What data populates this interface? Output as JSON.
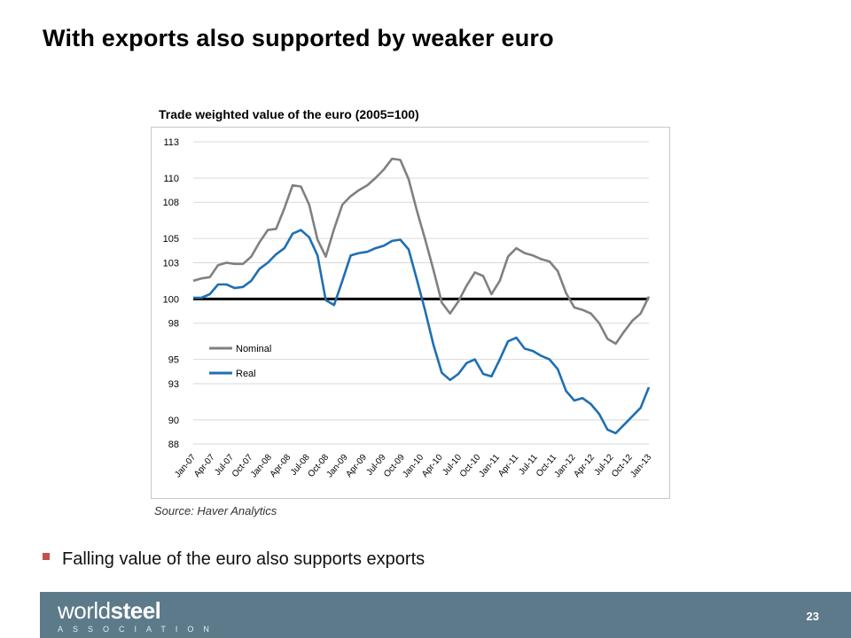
{
  "slide": {
    "title": "With exports also supported by weaker euro",
    "source": "Source: Haver Analytics",
    "bullet": "Falling value of the euro also supports exports",
    "page_number": "23"
  },
  "footer": {
    "logo_light": "world",
    "logo_bold": "steel",
    "logo_sub": "ASSOCIATION",
    "background": "#5c7a8a"
  },
  "chart_data": {
    "type": "line",
    "title": "Trade weighted value of the euro (2005=100)",
    "xlabel": "",
    "ylabel": "",
    "x_tick_labels": [
      "Jan-07",
      "Apr-07",
      "Jul-07",
      "Oct-07",
      "Jan-08",
      "Apr-08",
      "Jul-08",
      "Oct-08",
      "Jan-09",
      "Apr-09",
      "Jul-09",
      "Oct-09",
      "Jan-10",
      "Apr-10",
      "Jul-10",
      "Oct-10",
      "Jan-11",
      "Apr-11",
      "Jul-11",
      "Oct-11",
      "Jan-12",
      "Apr-12",
      "Jul-12",
      "Oct-12",
      "Jan-13"
    ],
    "y_ticks": [
      88,
      90,
      93,
      95,
      98,
      100,
      103,
      105,
      108,
      110,
      113
    ],
    "y_tick_labels": [
      "88",
      "90",
      "93",
      "95",
      "98",
      "100",
      "103",
      "105",
      "108",
      "110",
      "113"
    ],
    "ylim": [
      87.5,
      113
    ],
    "grid": true,
    "legend_position": "lower-left",
    "reference_line": 100,
    "series": [
      {
        "name": "Nominal",
        "color": "#808080",
        "values": [
          101.5,
          101.7,
          101.8,
          102.8,
          103.0,
          102.9,
          102.9,
          103.5,
          104.7,
          105.7,
          105.8,
          107.5,
          109.4,
          109.3,
          107.8,
          104.9,
          103.5,
          105.8,
          107.8,
          108.5,
          109.0,
          109.4,
          110.0,
          110.7,
          111.6,
          111.5,
          109.9,
          107.3,
          104.9,
          102.4,
          99.7,
          98.8,
          99.8,
          101.1,
          102.2,
          101.9,
          100.4,
          101.5,
          103.5,
          104.2,
          103.8,
          103.6,
          103.3,
          103.1,
          102.3,
          100.5,
          99.3,
          99.1,
          98.8,
          98.0,
          96.7,
          96.3,
          97.3,
          98.2,
          98.8,
          100.2
        ]
      },
      {
        "name": "Real",
        "color": "#1f6fb2",
        "values": [
          100.1,
          100.1,
          100.4,
          101.2,
          101.2,
          100.9,
          101.0,
          101.5,
          102.5,
          103.0,
          103.7,
          104.2,
          105.4,
          105.7,
          105.1,
          103.6,
          99.9,
          99.5,
          101.5,
          103.6,
          103.8,
          103.9,
          104.2,
          104.4,
          104.8,
          104.9,
          104.1,
          101.6,
          99.0,
          96.2,
          93.9,
          93.3,
          93.8,
          94.7,
          95.0,
          93.8,
          93.6,
          95.0,
          96.5,
          96.8,
          95.9,
          95.7,
          95.3,
          95.0,
          94.2,
          92.4,
          91.6,
          91.8,
          91.3,
          90.5,
          89.2,
          88.9,
          89.6,
          90.3,
          91.0,
          92.7
        ]
      }
    ]
  }
}
